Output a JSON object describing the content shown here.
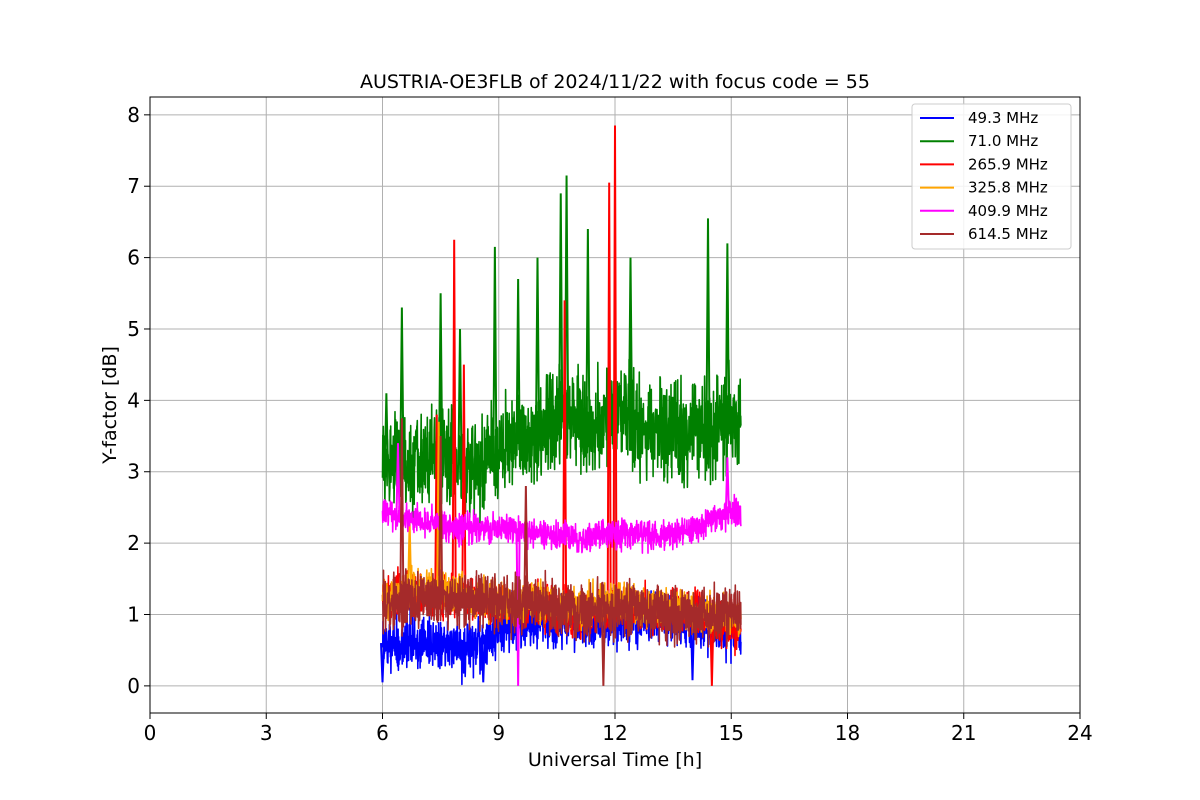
{
  "chart_data": {
    "type": "line",
    "title": "AUSTRIA-OE3FLB of 2024/11/22 with focus code = 55",
    "xlabel": "Universal Time [h]",
    "ylabel": "Y-factor [dB]",
    "xlim": [
      0,
      24
    ],
    "ylim": [
      -0.38,
      8.25
    ],
    "xticks": [
      0,
      3,
      6,
      9,
      12,
      15,
      18,
      21,
      24
    ],
    "yticks": [
      0,
      1,
      2,
      3,
      4,
      5,
      6,
      7,
      8
    ],
    "grid": true,
    "legend_position": "top-right",
    "time_range": [
      6.0,
      15.25
    ],
    "series": [
      {
        "name": "  49.3 MHz",
        "color": "#0000ff",
        "baseline": [
          [
            6.0,
            0.6
          ],
          [
            7.0,
            0.62
          ],
          [
            8.0,
            0.5
          ],
          [
            9.0,
            0.8
          ],
          [
            10.0,
            0.95
          ],
          [
            11.0,
            0.9
          ],
          [
            12.0,
            0.95
          ],
          [
            13.0,
            0.95
          ],
          [
            14.0,
            0.9
          ],
          [
            15.0,
            0.8
          ],
          [
            15.25,
            0.8
          ]
        ],
        "amplitude": 0.55,
        "peaks": [
          [
            6.0,
            0.05
          ],
          [
            8.6,
            0.05
          ],
          [
            14.0,
            0.08
          ]
        ]
      },
      {
        "name": "  71.0 MHz",
        "color": "#008000",
        "baseline": [
          [
            6.0,
            3.0
          ],
          [
            6.5,
            3.2
          ],
          [
            7.0,
            3.1
          ],
          [
            7.5,
            3.3
          ],
          [
            8.5,
            3.0
          ],
          [
            9.0,
            3.3
          ],
          [
            9.5,
            3.4
          ],
          [
            10.0,
            3.6
          ],
          [
            10.7,
            3.8
          ],
          [
            11.3,
            3.6
          ],
          [
            12.0,
            3.8
          ],
          [
            13.0,
            3.6
          ],
          [
            14.0,
            3.6
          ],
          [
            15.0,
            3.7
          ],
          [
            15.25,
            3.7
          ]
        ],
        "amplitude": 1.0,
        "peaks": [
          [
            6.1,
            4.1
          ],
          [
            6.5,
            5.3
          ],
          [
            7.5,
            5.5
          ],
          [
            8.0,
            5.0
          ],
          [
            8.9,
            6.15
          ],
          [
            9.5,
            5.7
          ],
          [
            10.0,
            6.0
          ],
          [
            10.6,
            6.9
          ],
          [
            10.75,
            7.15
          ],
          [
            11.3,
            6.4
          ],
          [
            12.4,
            6.0
          ],
          [
            14.4,
            6.55
          ],
          [
            14.9,
            6.2
          ]
        ]
      },
      {
        "name": "  265.9 MHz",
        "color": "#ff0000",
        "baseline": [
          [
            6.0,
            1.3
          ],
          [
            7.0,
            1.25
          ],
          [
            8.0,
            1.3
          ],
          [
            9.0,
            1.1
          ],
          [
            10.0,
            1.15
          ],
          [
            11.0,
            1.0
          ],
          [
            12.0,
            1.1
          ],
          [
            13.0,
            1.05
          ],
          [
            14.0,
            1.05
          ],
          [
            15.0,
            0.8
          ],
          [
            15.25,
            0.7
          ]
        ],
        "amplitude": 0.45,
        "peaks": [
          [
            7.4,
            3.8
          ],
          [
            7.85,
            6.25
          ],
          [
            8.1,
            4.5
          ],
          [
            10.7,
            5.4
          ],
          [
            11.85,
            7.05
          ],
          [
            12.0,
            7.85
          ],
          [
            14.5,
            0.0
          ]
        ]
      },
      {
        "name": "  325.8 MHz",
        "color": "#ffa500",
        "baseline": [
          [
            6.0,
            1.2
          ],
          [
            7.0,
            1.4
          ],
          [
            8.0,
            1.3
          ],
          [
            9.0,
            1.2
          ],
          [
            10.0,
            1.2
          ],
          [
            11.0,
            1.1
          ],
          [
            12.0,
            1.15
          ],
          [
            13.0,
            1.1
          ],
          [
            14.0,
            1.05
          ],
          [
            15.0,
            1.0
          ],
          [
            15.25,
            1.0
          ]
        ],
        "amplitude": 0.4,
        "peaks": [
          [
            7.45,
            3.7
          ],
          [
            6.7,
            2.3
          ]
        ]
      },
      {
        "name": "  409.9 MHz",
        "color": "#ff00ff",
        "baseline": [
          [
            6.0,
            2.45
          ],
          [
            7.0,
            2.3
          ],
          [
            8.0,
            2.2
          ],
          [
            9.0,
            2.2
          ],
          [
            10.0,
            2.15
          ],
          [
            11.0,
            2.05
          ],
          [
            12.0,
            2.15
          ],
          [
            13.0,
            2.1
          ],
          [
            14.0,
            2.2
          ],
          [
            15.0,
            2.45
          ],
          [
            15.25,
            2.4
          ]
        ],
        "amplitude": 0.3,
        "peaks": [
          [
            6.4,
            3.4
          ],
          [
            9.5,
            0.0
          ],
          [
            14.9,
            3.2
          ]
        ]
      },
      {
        "name": "  614.5 MHz",
        "color": "#a52a2a",
        "baseline": [
          [
            6.0,
            1.15
          ],
          [
            7.0,
            1.2
          ],
          [
            8.0,
            1.2
          ],
          [
            9.0,
            1.15
          ],
          [
            10.0,
            1.15
          ],
          [
            11.0,
            1.0
          ],
          [
            12.0,
            1.1
          ],
          [
            13.0,
            1.05
          ],
          [
            14.0,
            1.0
          ],
          [
            15.0,
            1.0
          ],
          [
            15.25,
            1.0
          ]
        ],
        "amplitude": 0.55,
        "peaks": [
          [
            6.5,
            3.75
          ],
          [
            7.5,
            3.5
          ],
          [
            11.7,
            0.0
          ],
          [
            9.7,
            2.8
          ]
        ]
      }
    ]
  }
}
